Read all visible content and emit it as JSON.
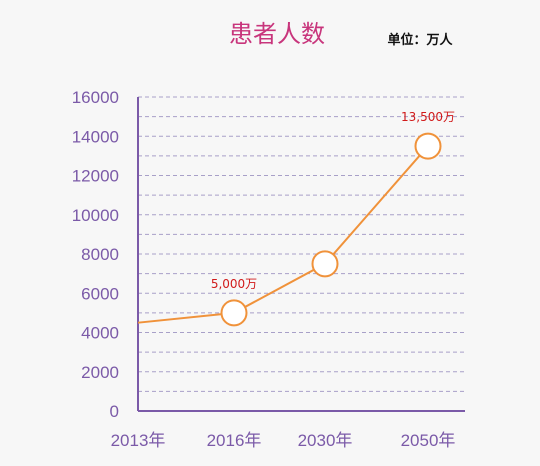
{
  "chart_data": {
    "type": "line",
    "title": "患者人数",
    "unit_label": "单位：万人",
    "categories": [
      "2013年",
      "2016年",
      "2030年",
      "2050年"
    ],
    "x": [
      2013,
      2016,
      2030,
      2050
    ],
    "series": [
      {
        "values": [
          4500,
          5000,
          7500,
          13500
        ]
      }
    ],
    "data_labels": [
      {
        "index": 1,
        "text": "5,000万"
      },
      {
        "index": 3,
        "text": "13,500万"
      }
    ],
    "yticks": [
      "0",
      "2000",
      "4000",
      "6000",
      "8000",
      "10000",
      "12000",
      "14000",
      "16000"
    ],
    "ylim": [
      0,
      16000
    ],
    "grid": true,
    "colors": {
      "line": "#f0923a",
      "axis": "#7b5aa8",
      "grid": "#a8a0c8",
      "title": "#c8357c",
      "label": "#d11a1a"
    }
  }
}
